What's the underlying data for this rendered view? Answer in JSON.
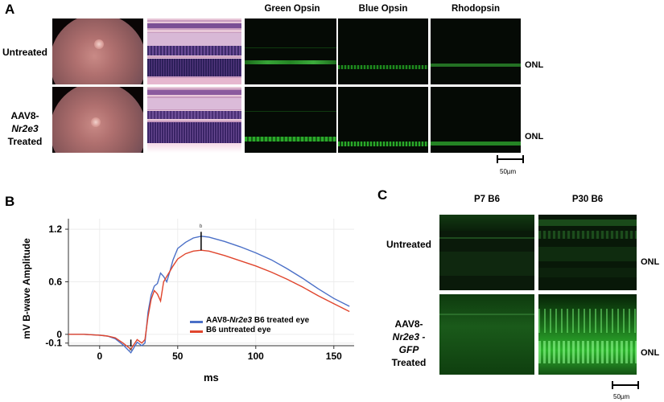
{
  "panel_a": {
    "letter": "A",
    "col_headers": [
      "Green Opsin",
      "Blue Opsin",
      "Rhodopsin"
    ],
    "rows": [
      {
        "label_lines": [
          "Untreated"
        ],
        "onl": "ONL"
      },
      {
        "label_lines": [
          "AAV8-",
          "Nr2e3",
          "Treated"
        ],
        "onl": "ONL"
      }
    ],
    "scale": "50µm"
  },
  "panel_b": {
    "letter": "B",
    "ylabel": "mV B-wave  Amplitude",
    "xlabel": "ms",
    "marker_a": "a",
    "marker_b": "b",
    "legend": [
      {
        "name": "AAV8-Nr2e3 B6 treated eye",
        "prefix": "AAV8-",
        "italic": "Nr2e3",
        "suffix": " B6 treated eye",
        "color": "#4a6fc7"
      },
      {
        "name": "B6 untreated eye",
        "prefix": "B6 untreated eye",
        "italic": "",
        "suffix": "",
        "color": "#e0452d"
      }
    ]
  },
  "panel_c": {
    "letter": "C",
    "col_headers": [
      "P7 B6",
      "P30 B6"
    ],
    "rows": [
      {
        "label_lines": [
          "Untreated"
        ],
        "onl": "ONL"
      },
      {
        "label_lines": [
          "AAV8-",
          "Nr2e3 -",
          "GFP",
          "Treated"
        ],
        "onl": "ONL"
      }
    ],
    "scale": "50µm"
  },
  "chart_data": {
    "type": "line",
    "xlabel": "ms",
    "ylabel": "mV B-wave  Amplitude",
    "xlim": [
      -20,
      163
    ],
    "ylim": [
      -0.13,
      1.32
    ],
    "xticks": [
      0,
      50,
      100,
      150
    ],
    "yticks": [
      -0.1,
      0,
      0.6,
      1.2
    ],
    "ytick_labels": [
      "-0.1",
      "0",
      "0.6",
      "1.2"
    ],
    "series": [
      {
        "name": "AAV8-Nr2e3 B6 treated eye",
        "color": "#4a6fc7",
        "x": [
          -20,
          -10,
          0,
          5,
          10,
          15,
          20,
          24,
          27,
          29,
          31,
          33,
          35,
          37,
          39,
          41,
          43,
          45,
          47,
          50,
          55,
          60,
          65,
          70,
          80,
          90,
          100,
          110,
          120,
          130,
          140,
          150,
          160
        ],
        "y": [
          0.0,
          0.0,
          -0.01,
          -0.02,
          -0.05,
          -0.12,
          -0.21,
          -0.09,
          -0.13,
          -0.1,
          0.25,
          0.45,
          0.55,
          0.58,
          0.7,
          0.66,
          0.6,
          0.72,
          0.85,
          0.98,
          1.05,
          1.1,
          1.12,
          1.11,
          1.06,
          1.0,
          0.93,
          0.85,
          0.75,
          0.64,
          0.52,
          0.41,
          0.32
        ]
      },
      {
        "name": "B6 untreated eye",
        "color": "#e0452d",
        "x": [
          -20,
          -10,
          0,
          5,
          10,
          15,
          20,
          24,
          27,
          29,
          31,
          33,
          35,
          37,
          39,
          41,
          43,
          45,
          47,
          50,
          55,
          60,
          65,
          70,
          80,
          90,
          100,
          110,
          120,
          130,
          140,
          150,
          160
        ],
        "y": [
          0.0,
          0.0,
          -0.01,
          -0.02,
          -0.04,
          -0.1,
          -0.17,
          -0.06,
          -0.1,
          -0.06,
          0.2,
          0.4,
          0.5,
          0.46,
          0.38,
          0.6,
          0.66,
          0.72,
          0.78,
          0.86,
          0.92,
          0.95,
          0.96,
          0.95,
          0.9,
          0.84,
          0.78,
          0.71,
          0.63,
          0.54,
          0.44,
          0.35,
          0.26
        ]
      }
    ]
  }
}
